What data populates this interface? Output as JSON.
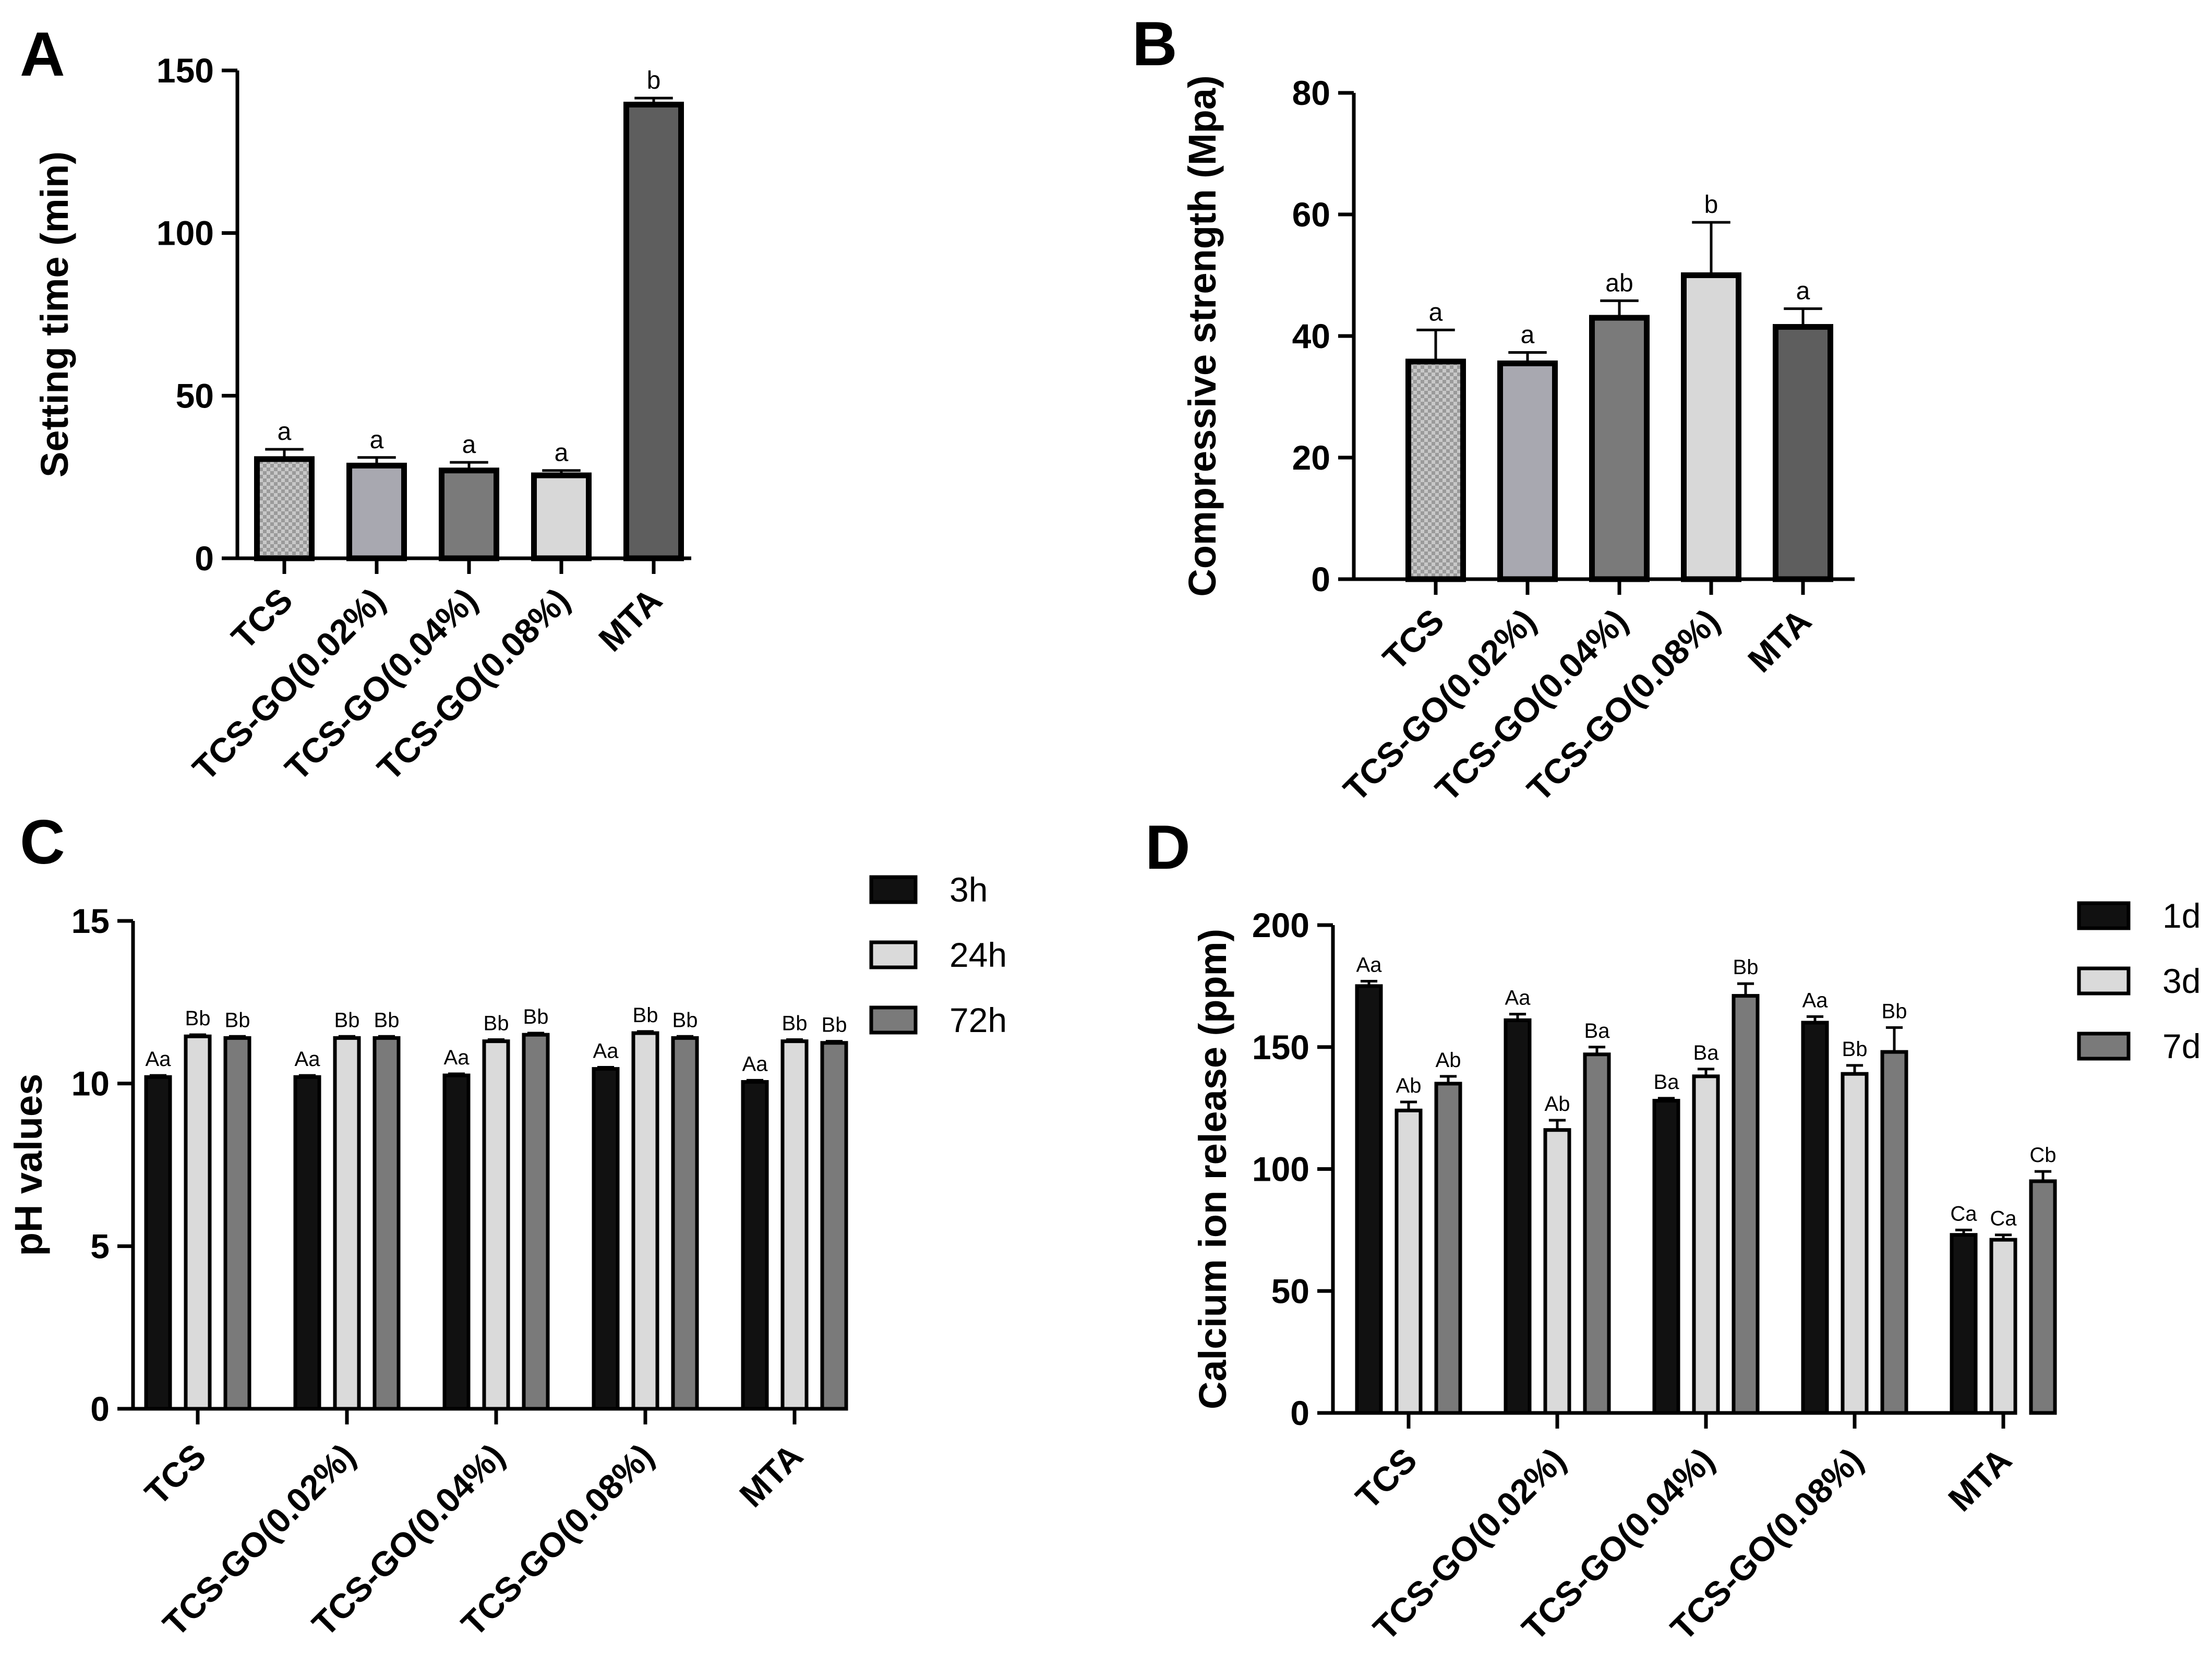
{
  "chart_data": [
    {
      "panel": "A",
      "type": "bar",
      "title": "",
      "xlabel": "",
      "ylabel": "Setting time (min)",
      "ylim": [
        0,
        150
      ],
      "yticks": [
        0,
        50,
        100,
        150
      ],
      "categories": [
        "TCS",
        "TCS-GO(0.02%)",
        "TCS-GO(0.04%)",
        "TCS-GO(0.08%)",
        "MTA"
      ],
      "values": [
        30.5,
        28.5,
        27,
        25.5,
        139.5
      ],
      "errors": [
        3,
        2.5,
        2.5,
        1.5,
        2
      ],
      "labels": [
        "a",
        "a",
        "a",
        "a",
        "b"
      ],
      "fills": [
        "pattern",
        "#a8a8b0",
        "#7a7a7a",
        "#d8d8d8",
        "#5e5e5e"
      ]
    },
    {
      "panel": "B",
      "type": "bar",
      "title": "",
      "xlabel": "",
      "ylabel": "Compressive strength (Mpa)",
      "ylim": [
        0,
        80
      ],
      "yticks": [
        0,
        20,
        40,
        60,
        80
      ],
      "categories": [
        "TCS",
        "TCS-GO(0.02%)",
        "TCS-GO(0.04%)",
        "TCS-GO(0.08%)",
        "MTA"
      ],
      "values": [
        35.8,
        35.5,
        43,
        50,
        41.5
      ],
      "errors": [
        5.2,
        1.8,
        2.8,
        8.7,
        3
      ],
      "labels": [
        "a",
        "a",
        "ab",
        "b",
        "a"
      ],
      "fills": [
        "pattern",
        "#a8a8b0",
        "#7a7a7a",
        "#d8d8d8",
        "#5e5e5e"
      ]
    },
    {
      "panel": "C",
      "type": "bar",
      "title": "",
      "xlabel": "",
      "ylabel": "pH values",
      "ylim": [
        0,
        15
      ],
      "yticks": [
        0,
        5,
        10,
        15
      ],
      "categories": [
        "TCS",
        "TCS-GO(0.02%)",
        "TCS-GO(0.04%)",
        "TCS-GO(0.08%)",
        "MTA"
      ],
      "legend_position": "top-right",
      "series": [
        {
          "name": "3h",
          "color": "#111111",
          "values": [
            10.2,
            10.2,
            10.25,
            10.45,
            10.05
          ],
          "errors": [
            0.05,
            0.05,
            0.05,
            0.05,
            0.05
          ],
          "labels": [
            "Aa",
            "Aa",
            "Aa",
            "Aa",
            "Aa"
          ]
        },
        {
          "name": "24h",
          "color": "#dadada",
          "values": [
            11.45,
            11.4,
            11.3,
            11.55,
            11.3
          ],
          "errors": [
            0.05,
            0.05,
            0.05,
            0.05,
            0.05
          ],
          "labels": [
            "Bb",
            "Bb",
            "Bb",
            "Bb",
            "Bb"
          ]
        },
        {
          "name": "72h",
          "color": "#7a7a7a",
          "values": [
            11.4,
            11.4,
            11.5,
            11.4,
            11.25
          ],
          "errors": [
            0.05,
            0.05,
            0.05,
            0.05,
            0.05
          ],
          "labels": [
            "Bb",
            "Bb",
            "Bb",
            "Bb",
            "Bb"
          ]
        }
      ]
    },
    {
      "panel": "D",
      "type": "bar",
      "title": "",
      "xlabel": "",
      "ylabel": "Calcium ion release (ppm)",
      "ylim": [
        0,
        200
      ],
      "yticks": [
        0,
        50,
        100,
        150,
        200
      ],
      "categories": [
        "TCS",
        "TCS-GO(0.02%)",
        "TCS-GO(0.04%)",
        "TCS-GO(0.08%)",
        "MTA"
      ],
      "legend_position": "top-right",
      "series": [
        {
          "name": "1d",
          "color": "#111111",
          "values": [
            175,
            161,
            128,
            160,
            73
          ],
          "errors": [
            2,
            2.5,
            1,
            2.5,
            2
          ],
          "labels": [
            "Aa",
            "Aa",
            "Ba",
            "Aa",
            "Ca"
          ]
        },
        {
          "name": "3d",
          "color": "#dadada",
          "values": [
            124,
            116,
            138,
            139,
            71
          ],
          "errors": [
            3.5,
            4,
            3,
            3.5,
            2
          ],
          "labels": [
            "Ab",
            "Ab",
            "Ba",
            "Bb",
            "Ca"
          ]
        },
        {
          "name": "7d",
          "color": "#7a7a7a",
          "values": [
            135,
            147,
            171,
            148,
            95
          ],
          "errors": [
            3,
            3,
            5,
            10,
            4
          ],
          "labels": [
            "Ab",
            "Ba",
            "Bb",
            "Bb",
            "Cb"
          ]
        }
      ]
    }
  ]
}
